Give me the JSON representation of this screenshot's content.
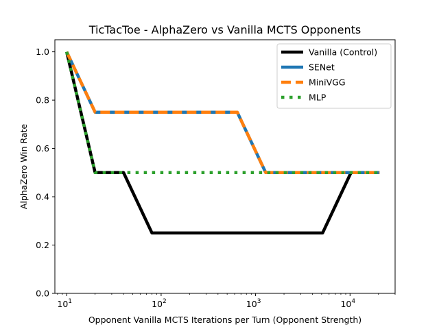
{
  "chart_data": {
    "type": "line",
    "title": "TicTacToe - AlphaZero vs Vanilla MCTS Opponents",
    "xlabel": "Opponent Vanilla MCTS Iterations per Turn (Opponent Strength)",
    "ylabel": "AlphaZero Win Rate",
    "xscale": "log",
    "xlim": [
      7.5,
      30000
    ],
    "ylim": [
      0.0,
      1.05
    ],
    "xticks": [
      {
        "value": 10,
        "base": "10",
        "exp": "1"
      },
      {
        "value": 100,
        "base": "10",
        "exp": "2"
      },
      {
        "value": 1000,
        "base": "10",
        "exp": "3"
      },
      {
        "value": 10000,
        "base": "10",
        "exp": "4"
      }
    ],
    "yticks": [
      "0.0",
      "0.2",
      "0.4",
      "0.6",
      "0.8",
      "1.0"
    ],
    "legend_position": "top-right",
    "grid": false,
    "series": [
      {
        "name": "Vanilla (Control)",
        "color": "#000000",
        "style": "solid",
        "x": [
          10,
          20,
          40,
          80,
          160,
          320,
          640,
          1280,
          2560,
          5120,
          10240,
          20480
        ],
        "y": [
          1.0,
          0.5,
          0.5,
          0.25,
          0.25,
          0.25,
          0.25,
          0.25,
          0.25,
          0.25,
          0.5,
          0.5
        ]
      },
      {
        "name": "SENet",
        "color": "#1f77b4",
        "style": "solid",
        "x": [
          10,
          20,
          40,
          80,
          160,
          320,
          640,
          1280,
          2560,
          5120,
          10240,
          20480
        ],
        "y": [
          1.0,
          0.75,
          0.75,
          0.75,
          0.75,
          0.75,
          0.75,
          0.5,
          0.5,
          0.5,
          0.5,
          0.5
        ]
      },
      {
        "name": "MiniVGG",
        "color": "#ff7f0e",
        "style": "dashed",
        "x": [
          10,
          20,
          40,
          80,
          160,
          320,
          640,
          1280,
          2560,
          5120,
          10240,
          20480
        ],
        "y": [
          1.0,
          0.75,
          0.75,
          0.75,
          0.75,
          0.75,
          0.75,
          0.5,
          0.5,
          0.5,
          0.5,
          0.5
        ]
      },
      {
        "name": "MLP",
        "color": "#2ca02c",
        "style": "dotted",
        "x": [
          10,
          20,
          40,
          80,
          160,
          320,
          640,
          1280,
          2560,
          5120,
          10240,
          20480
        ],
        "y": [
          1.0,
          0.5,
          0.5,
          0.5,
          0.5,
          0.5,
          0.5,
          0.5,
          0.5,
          0.5,
          0.5,
          0.5
        ]
      }
    ]
  }
}
